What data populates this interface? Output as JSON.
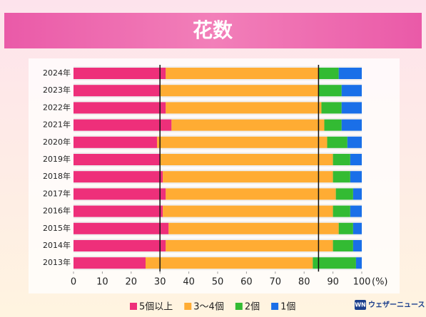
{
  "chart_data": {
    "type": "stacked-bar-horizontal",
    "title": "花数",
    "categories": [
      "2024年",
      "2023年",
      "2022年",
      "2021年",
      "2020年",
      "2019年",
      "2018年",
      "2017年",
      "2016年",
      "2015年",
      "2014年",
      "2013年"
    ],
    "series": [
      {
        "name": "5個以上",
        "color": "#ee2f7a",
        "values": [
          32,
          30,
          32,
          34,
          29,
          30,
          31,
          32,
          31,
          33,
          32,
          25
        ]
      },
      {
        "name": "3～4個",
        "color": "#ffac33",
        "values": [
          53,
          55,
          54,
          53,
          59,
          60,
          59,
          59,
          59,
          59,
          58,
          58
        ]
      },
      {
        "name": "2個",
        "color": "#33bb33",
        "values": [
          7,
          8,
          7,
          6,
          7,
          6,
          6,
          6,
          6,
          5,
          7,
          15
        ]
      },
      {
        "name": "1個",
        "color": "#1a6fe8",
        "values": [
          8,
          7,
          7,
          7,
          5,
          4,
          4,
          3,
          4,
          3,
          3,
          2
        ]
      }
    ],
    "xlim": [
      0,
      100
    ],
    "xticks": [
      0,
      10,
      20,
      30,
      40,
      50,
      60,
      70,
      80,
      90,
      100
    ],
    "x_unit": "(%)",
    "reference_lines": [
      30,
      85
    ],
    "reference_color": "#111111",
    "watermark": "ウェザーニュース"
  }
}
